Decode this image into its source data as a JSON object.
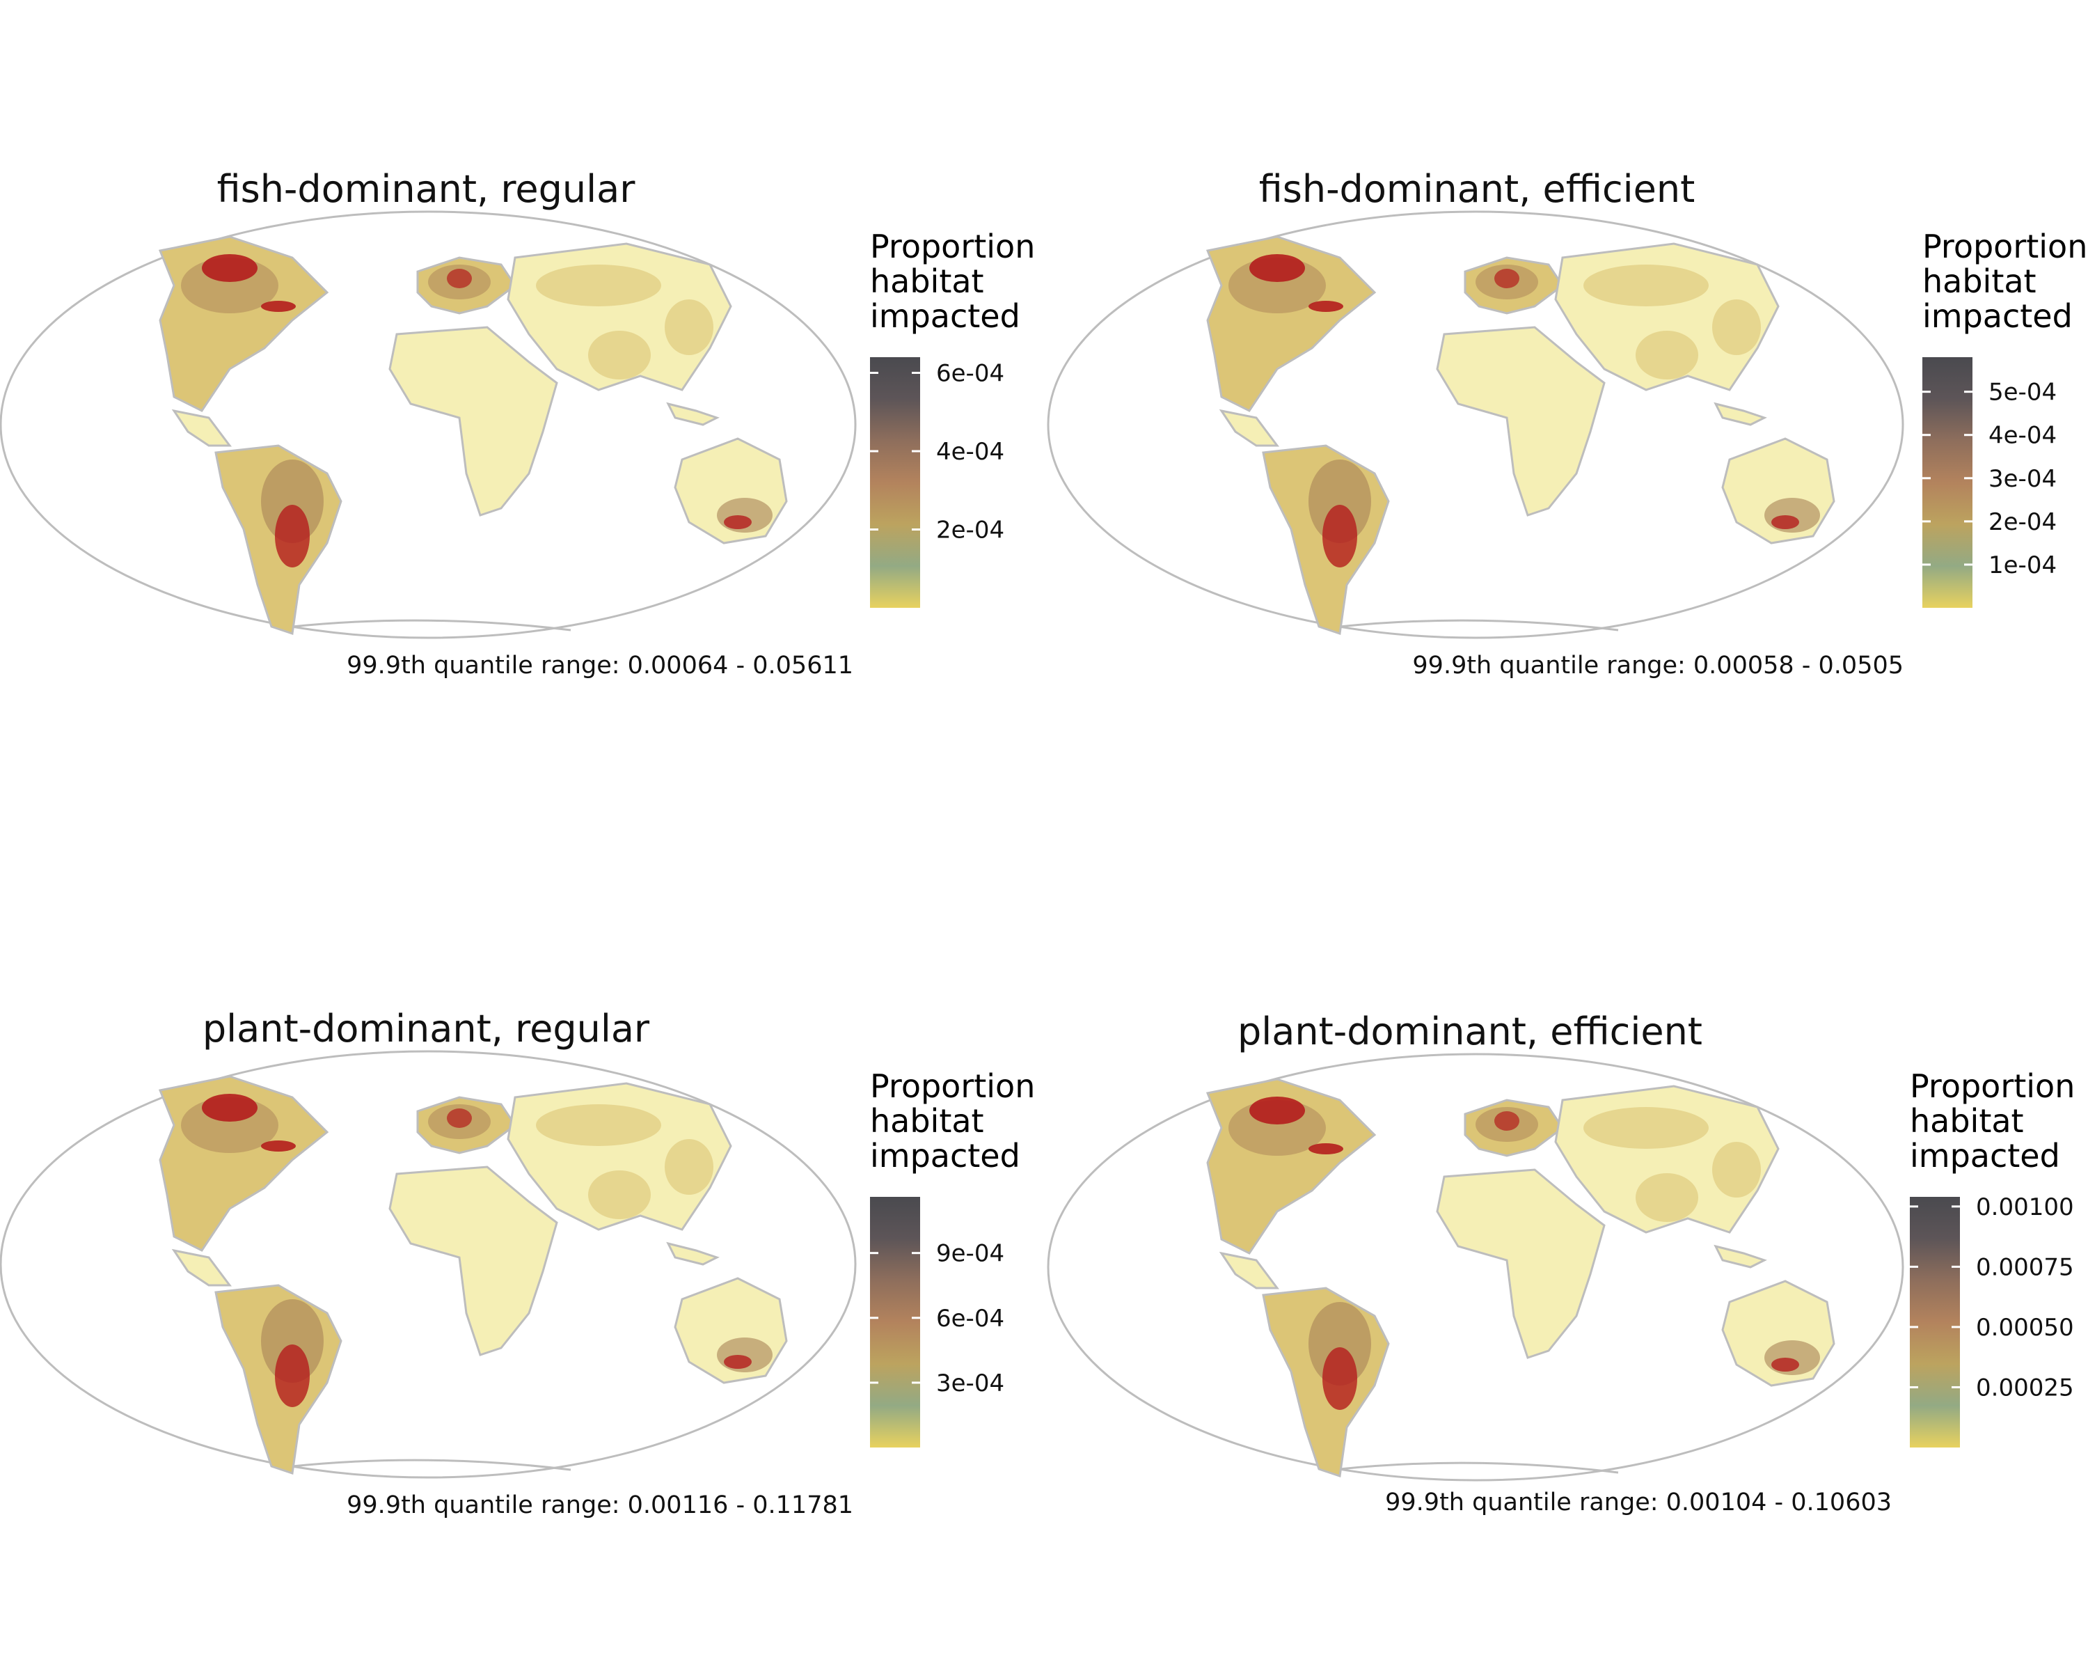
{
  "figure": {
    "panels": [
      {
        "title": "fish-dominant, regular",
        "legend_title": [
          "Proportion",
          "habitat",
          "impacted"
        ],
        "legend_ticks": [
          "6e-04",
          "4e-04",
          "2e-04"
        ],
        "tick_values": [
          0.0006,
          0.0004,
          0.0002
        ],
        "scale_max": 0.00064,
        "caption": "99.9th quantile range: 0.00064 - 0.05611"
      },
      {
        "title": "fish-dominant, efficient",
        "legend_title": [
          "Proportion",
          "habitat",
          "impacted"
        ],
        "legend_ticks": [
          "5e-04",
          "4e-04",
          "3e-04",
          "2e-04",
          "1e-04"
        ],
        "tick_values": [
          0.0005,
          0.0004,
          0.0003,
          0.0002,
          0.0001
        ],
        "scale_max": 0.00058,
        "caption": "99.9th quantile range: 0.00058 - 0.0505"
      },
      {
        "title": "plant-dominant, regular",
        "legend_title": [
          "Proportion",
          "habitat",
          "impacted"
        ],
        "legend_ticks": [
          "9e-04",
          "6e-04",
          "3e-04"
        ],
        "tick_values": [
          0.0009,
          0.0006,
          0.0003
        ],
        "scale_max": 0.00116,
        "caption": "99.9th quantile range: 0.00116 - 0.11781"
      },
      {
        "title": "plant-dominant, efficient",
        "legend_title": [
          "Proportion",
          "habitat",
          "impacted"
        ],
        "legend_ticks": [
          "0.00100",
          "0.00075",
          "0.00050",
          "0.00025"
        ],
        "tick_values": [
          0.001,
          0.00075,
          0.0005,
          0.00025
        ],
        "scale_max": 0.00104,
        "caption": "99.9th quantile range: 0.00104 - 0.10603"
      }
    ],
    "colors": {
      "scale": [
        "#e8d25f",
        "#93aa84",
        "#bca35f",
        "#b3835d",
        "#8e6e5c",
        "#5d5558",
        "#4a4a4f"
      ],
      "outline": "#bdbdbd",
      "land_base": "#f5efb5",
      "land_mid": "#dcc576",
      "land_high": "#a98256",
      "hotspot": "#b41d1d"
    }
  }
}
